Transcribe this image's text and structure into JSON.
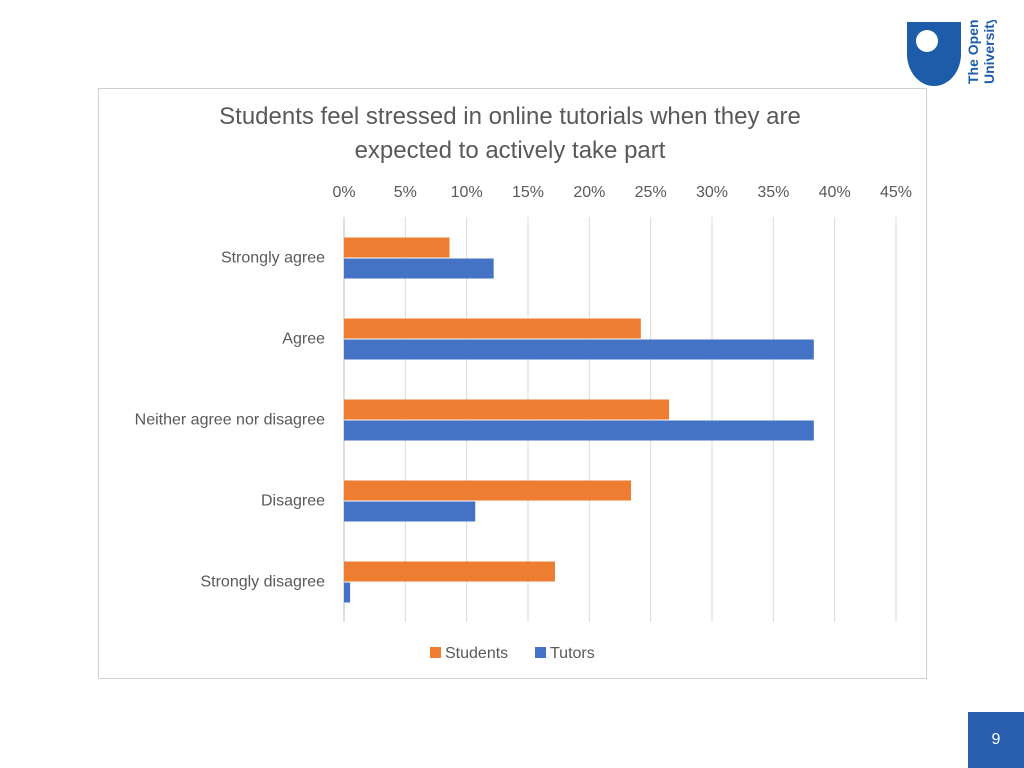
{
  "branding": {
    "logo_text_line1": "The Open",
    "logo_text_line2": "University",
    "logo_color": "#1c5ca8"
  },
  "slide_number": "9",
  "colors": {
    "students": "#ed7d31",
    "tutors": "#4472c4",
    "gridline": "#d9d9d9",
    "text": "#595959",
    "slide_badge": "#2a5fb0"
  },
  "chart_data": {
    "type": "bar",
    "orientation": "horizontal",
    "title_lines": [
      "Students feel stressed in online tutorials when they are",
      "expected to actively take part"
    ],
    "categories": [
      "Strongly agree",
      "Agree",
      "Neither agree nor disagree",
      "Disagree",
      "Strongly disagree"
    ],
    "series": [
      {
        "name": "Students",
        "color": "#ed7d31",
        "values": [
          8.6,
          24.2,
          26.5,
          23.4,
          17.2
        ]
      },
      {
        "name": "Tutors",
        "color": "#4472c4",
        "values": [
          12.2,
          38.3,
          38.3,
          10.7,
          0.5
        ]
      }
    ],
    "x_ticks": [
      "0%",
      "5%",
      "10%",
      "15%",
      "20%",
      "25%",
      "30%",
      "35%",
      "40%",
      "45%"
    ],
    "xlim": [
      0,
      45
    ],
    "x_axis_position": "top",
    "grid": true,
    "legend_position": "bottom"
  }
}
